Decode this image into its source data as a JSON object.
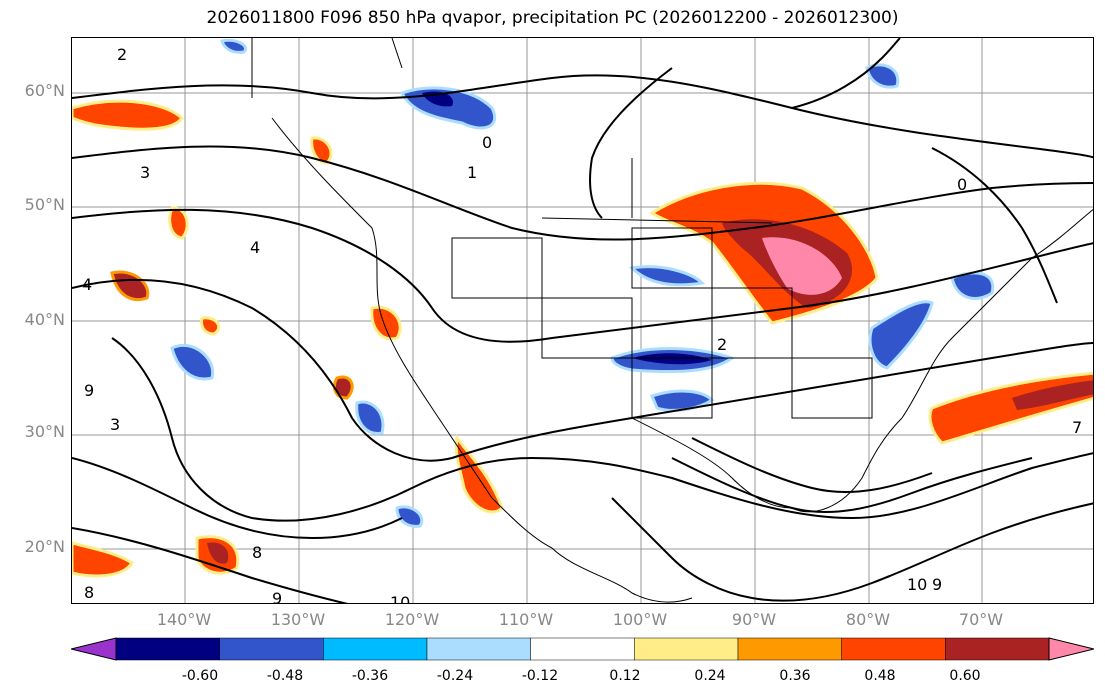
{
  "title": "2026011800 F096 850 hPa qvapor, precipitation PC (2026012200 - 2026012300)",
  "lat_labels": [
    "60°N",
    "50°N",
    "40°N",
    "30°N",
    "20°N"
  ],
  "lon_labels": [
    "140°W",
    "130°W",
    "120°W",
    "110°W",
    "100°W",
    "90°W",
    "80°W",
    "70°W"
  ],
  "contour_labels": [
    "2",
    "0",
    "1",
    "3",
    "4",
    "4",
    "0",
    "2",
    "3",
    "9",
    "8",
    "9",
    "10",
    "10",
    "9",
    "8",
    "7"
  ],
  "colorbar": {
    "colors": [
      "#9933cc",
      "#000080",
      "#3355cc",
      "#00bbff",
      "#aaddff",
      "#ffffff",
      "#ffee88",
      "#ff9900",
      "#ff4400",
      "#aa2222",
      "#ff88aa"
    ],
    "tick_labels": [
      "-0.60",
      "-0.48",
      "-0.36",
      "-0.24",
      "-0.12",
      "0.12",
      "0.24",
      "0.36",
      "0.48",
      "0.60"
    ]
  }
}
